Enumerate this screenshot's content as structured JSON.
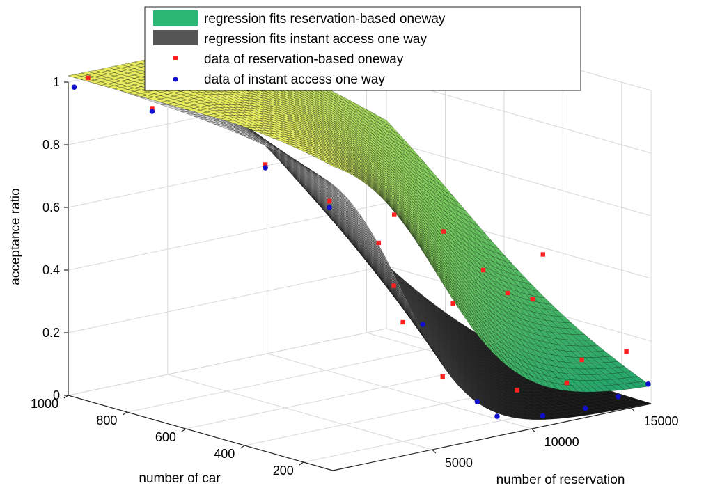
{
  "chart_data": {
    "type": "surface3d",
    "title": "",
    "xlabel": "number of reservation",
    "ylabel": "number of car",
    "zlabel": "acceptance ratio",
    "x_ticks": [
      5000,
      10000,
      15000
    ],
    "y_ticks": [
      200,
      400,
      600,
      800,
      1000
    ],
    "z_ticks": [
      0,
      0.2,
      0.4,
      0.6,
      0.8,
      1
    ],
    "x_tick_labels": [
      "5000",
      "10000",
      "15000"
    ],
    "y_tick_labels": [
      "200",
      "400",
      "600",
      "800",
      "1000"
    ],
    "z_tick_labels": [
      "0",
      "0.2",
      "0.4",
      "0.6",
      "0.8",
      "1"
    ],
    "xlim": [
      0,
      16000
    ],
    "ylim": [
      100,
      1000
    ],
    "zlim": [
      0,
      1
    ],
    "grid": true,
    "legend_position": "top",
    "legend": [
      {
        "label": "regression fits reservation-based oneway",
        "kind": "surface",
        "color": "#2bb673"
      },
      {
        "label": "regression fits  instant access one way",
        "kind": "surface",
        "color": "#555555"
      },
      {
        "label": "data of reservation-based oneway",
        "kind": "marker-square",
        "color": "#ff2020"
      },
      {
        "label": "data of instant access one way",
        "kind": "marker-dot",
        "color": "#1010cc"
      }
    ],
    "series": [
      {
        "name": "data of reservation-based oneway",
        "points": [
          {
            "x": 1000,
            "y": 1000,
            "z": 1.0
          },
          {
            "x": 2000,
            "y": 850,
            "z": 0.93
          },
          {
            "x": 4000,
            "y": 600,
            "z": 0.79
          },
          {
            "x": 5000,
            "y": 450,
            "z": 0.7
          },
          {
            "x": 5000,
            "y": 200,
            "z": 0.38
          },
          {
            "x": 6000,
            "y": 350,
            "z": 0.58
          },
          {
            "x": 7000,
            "y": 200,
            "z": 0.18
          },
          {
            "x": 7500,
            "y": 400,
            "z": 0.41
          },
          {
            "x": 9000,
            "y": 300,
            "z": 0.36
          },
          {
            "x": 9000,
            "y": 500,
            "z": 0.59
          },
          {
            "x": 10000,
            "y": 400,
            "z": 0.55
          },
          {
            "x": 11000,
            "y": 250,
            "z": 0.38
          },
          {
            "x": 12000,
            "y": 400,
            "z": 0.4
          },
          {
            "x": 10000,
            "y": 150,
            "z": 0.11
          },
          {
            "x": 13000,
            "y": 300,
            "z": 0.32
          },
          {
            "x": 12500,
            "y": 150,
            "z": 0.1
          },
          {
            "x": 14000,
            "y": 200,
            "z": 0.14
          },
          {
            "x": 15000,
            "y": 400,
            "z": 0.41
          },
          {
            "x": 15500,
            "y": 150,
            "z": 0.16
          }
        ]
      },
      {
        "name": "data of instant access one way",
        "points": [
          {
            "x": 300,
            "y": 1000,
            "z": 0.98
          },
          {
            "x": 2000,
            "y": 850,
            "z": 0.92
          },
          {
            "x": 4000,
            "y": 600,
            "z": 0.78
          },
          {
            "x": 5000,
            "y": 450,
            "z": 0.68
          },
          {
            "x": 6000,
            "y": 200,
            "z": 0.36
          },
          {
            "x": 8000,
            "y": 150,
            "z": 0.1
          },
          {
            "x": 9000,
            "y": 150,
            "z": 0.04
          },
          {
            "x": 11000,
            "y": 130,
            "z": 0.02
          },
          {
            "x": 13000,
            "y": 120,
            "z": 0.02
          },
          {
            "x": 14500,
            "y": 110,
            "z": 0.04
          },
          {
            "x": 16000,
            "y": 110,
            "z": 0.06
          }
        ]
      }
    ]
  }
}
